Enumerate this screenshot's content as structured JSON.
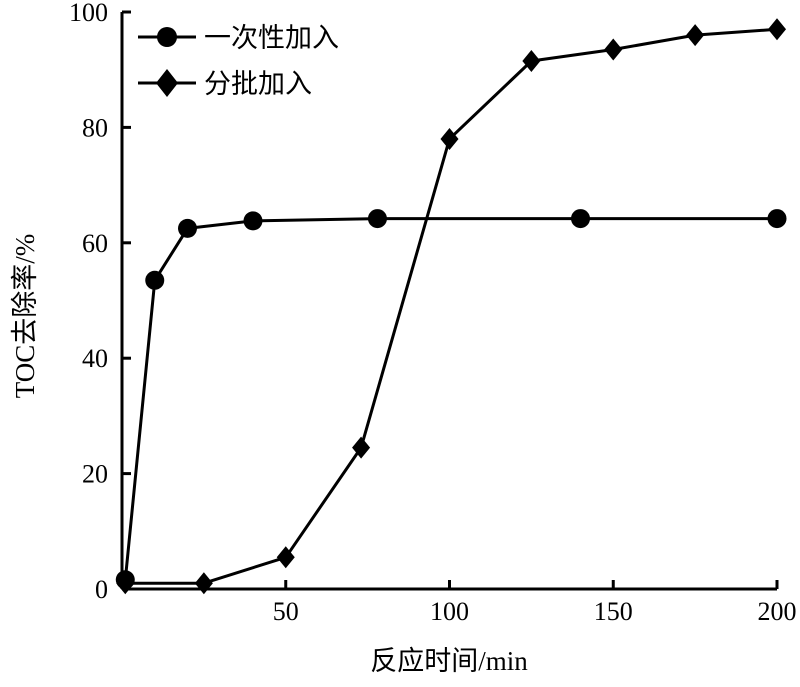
{
  "chart_data": {
    "type": "line",
    "title": "",
    "xlabel": "反应时间/min",
    "ylabel": "TOC去除率/%",
    "xlim": [
      0,
      200
    ],
    "ylim": [
      0,
      100
    ],
    "xticks": [
      50,
      100,
      150,
      200
    ],
    "yticks": [
      0,
      20,
      40,
      60,
      80,
      100
    ],
    "xtick_labels": [
      "50",
      "100",
      "150",
      "200"
    ],
    "ytick_labels": [
      "0",
      "20",
      "40",
      "60",
      "80",
      "100"
    ],
    "grid": false,
    "legend_position": "top-left",
    "series": [
      {
        "name": "一次性加入",
        "marker": "circle",
        "color": "#000000",
        "x": [
          1,
          10,
          20,
          40,
          78,
          140,
          200
        ],
        "y": [
          1.6,
          53.5,
          62.5,
          63.8,
          64.2,
          64.2,
          64.2
        ]
      },
      {
        "name": "分批加入",
        "marker": "diamond",
        "color": "#000000",
        "x": [
          1,
          25,
          50,
          73,
          100,
          125,
          150,
          175,
          200
        ],
        "y": [
          1.0,
          1.0,
          5.5,
          24.5,
          78,
          91.5,
          93.5,
          96,
          97
        ]
      }
    ]
  }
}
